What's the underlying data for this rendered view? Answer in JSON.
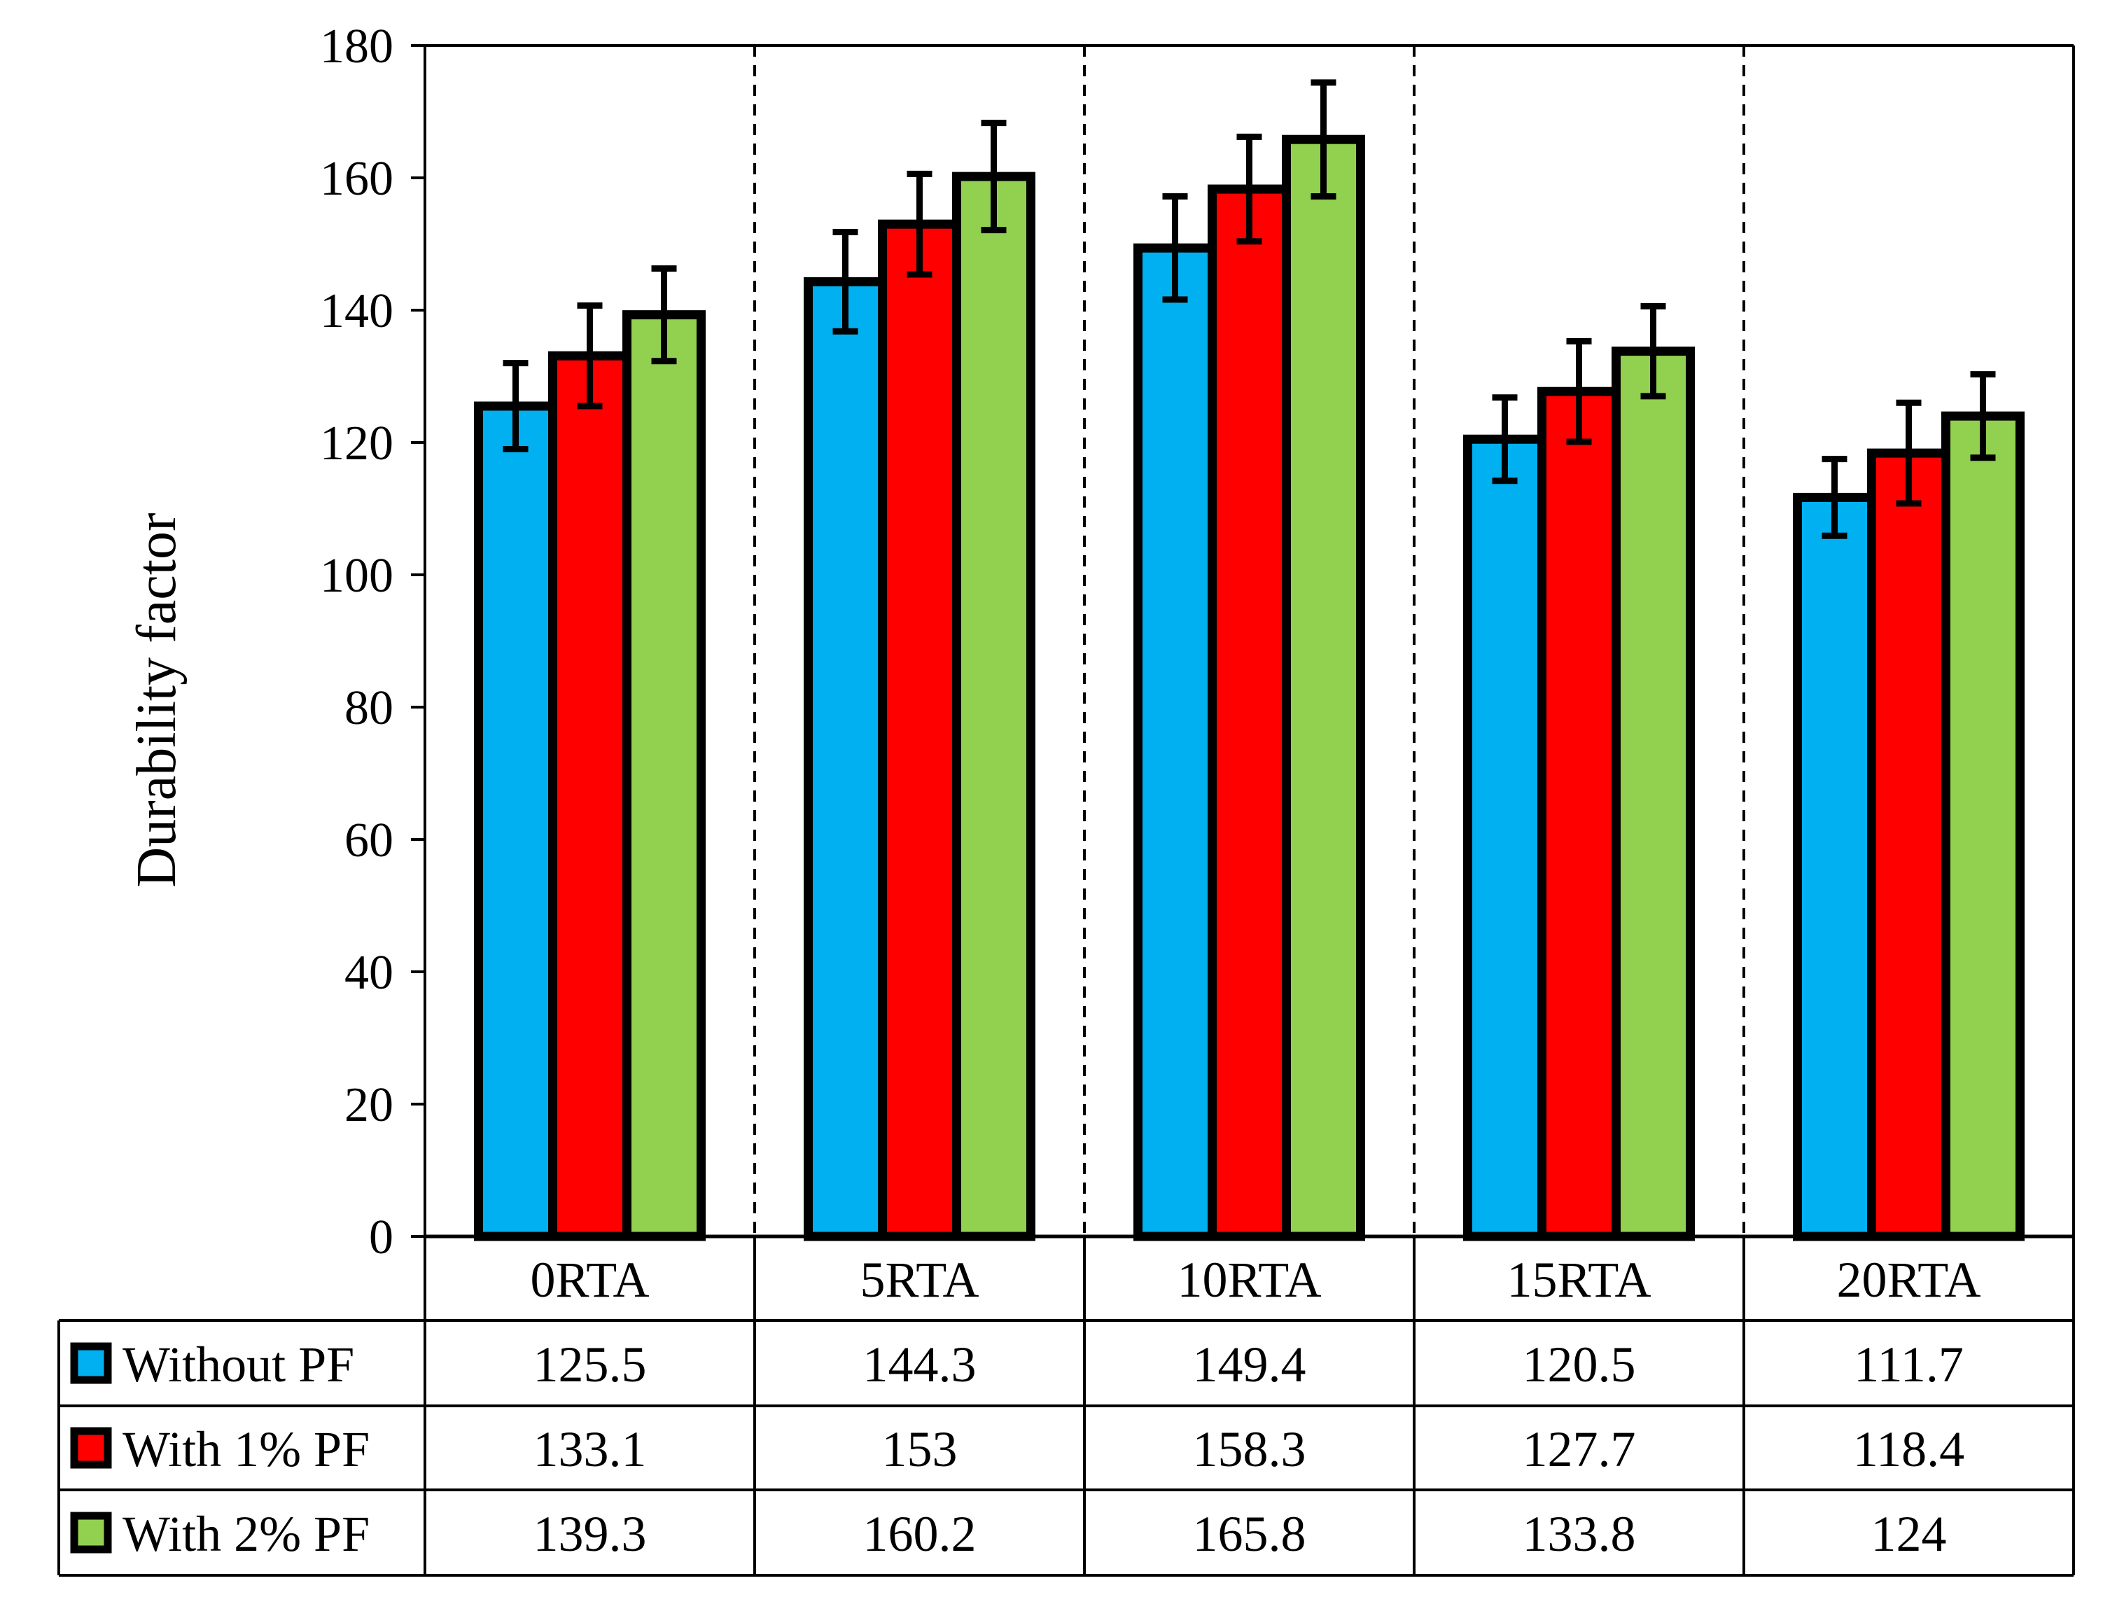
{
  "chart_data": {
    "type": "bar",
    "title": "",
    "xlabel": "",
    "ylabel": "Durability factor",
    "ylim": [
      0,
      180
    ],
    "yticks": [
      0,
      20,
      40,
      60,
      80,
      100,
      120,
      140,
      160,
      180
    ],
    "grid": false,
    "legend": "data-table",
    "categories": [
      "0RTA",
      "5RTA",
      "10RTA",
      "15RTA",
      "20RTA"
    ],
    "series": [
      {
        "name": "Without PF",
        "color": "#00b0f0",
        "values": [
          125.5,
          144.3,
          149.4,
          120.5,
          111.7
        ],
        "value_labels": [
          "125.5",
          "144.3",
          "149.4",
          "120.5",
          "111.7"
        ],
        "error": [
          6.5,
          7.5,
          7.8,
          6.3,
          5.8
        ]
      },
      {
        "name": "With 1% PF",
        "color": "#ff0000",
        "values": [
          133.1,
          153,
          158.3,
          127.7,
          118.4
        ],
        "value_labels": [
          "133.1",
          "153",
          "158.3",
          "127.7",
          "118.4"
        ],
        "error": [
          7.6,
          7.6,
          7.9,
          7.6,
          7.6
        ]
      },
      {
        "name": "With 2% PF",
        "color": "#92d050",
        "values": [
          139.3,
          160.2,
          165.8,
          133.8,
          124
        ],
        "value_labels": [
          "139.3",
          "160.2",
          "165.8",
          "133.8",
          "124"
        ],
        "error": [
          7.0,
          8.1,
          8.6,
          6.8,
          6.3
        ]
      }
    ]
  }
}
